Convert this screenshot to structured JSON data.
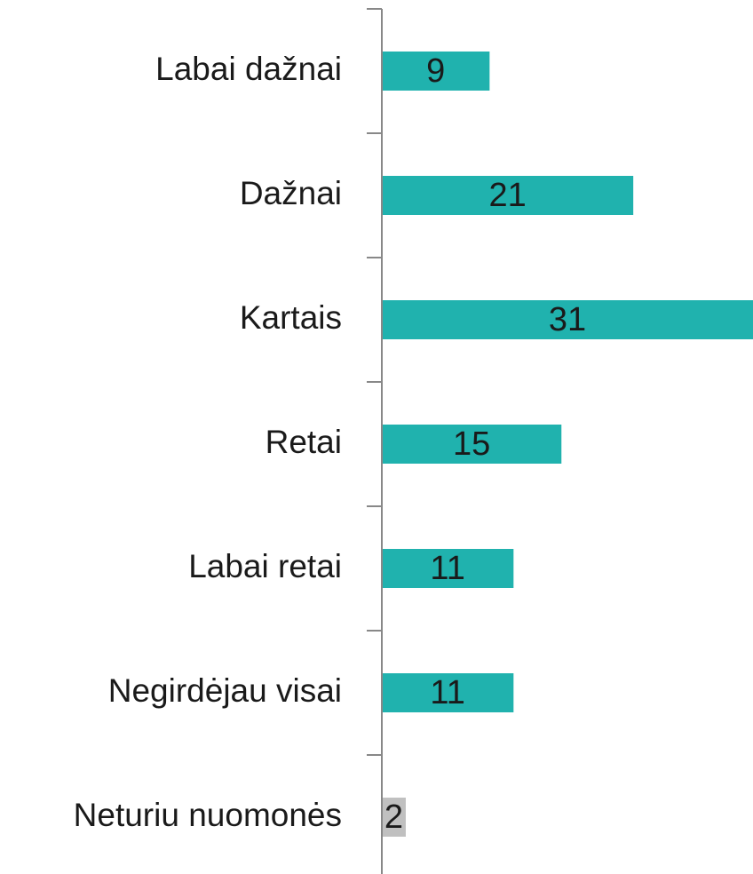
{
  "chart_data": {
    "type": "hbar",
    "categories": [
      "Labai dažnai",
      "Dažnai",
      "Kartais",
      "Retai",
      "Labai retai",
      "Negirdėjau visai",
      "Neturiu nuomonės"
    ],
    "values": [
      9,
      21,
      31,
      15,
      11,
      11,
      2
    ],
    "colors": [
      "#20b2ae",
      "#20b2ae",
      "#20b2ae",
      "#20b2ae",
      "#20b2ae",
      "#20b2ae",
      "#c0c0c0"
    ]
  }
}
